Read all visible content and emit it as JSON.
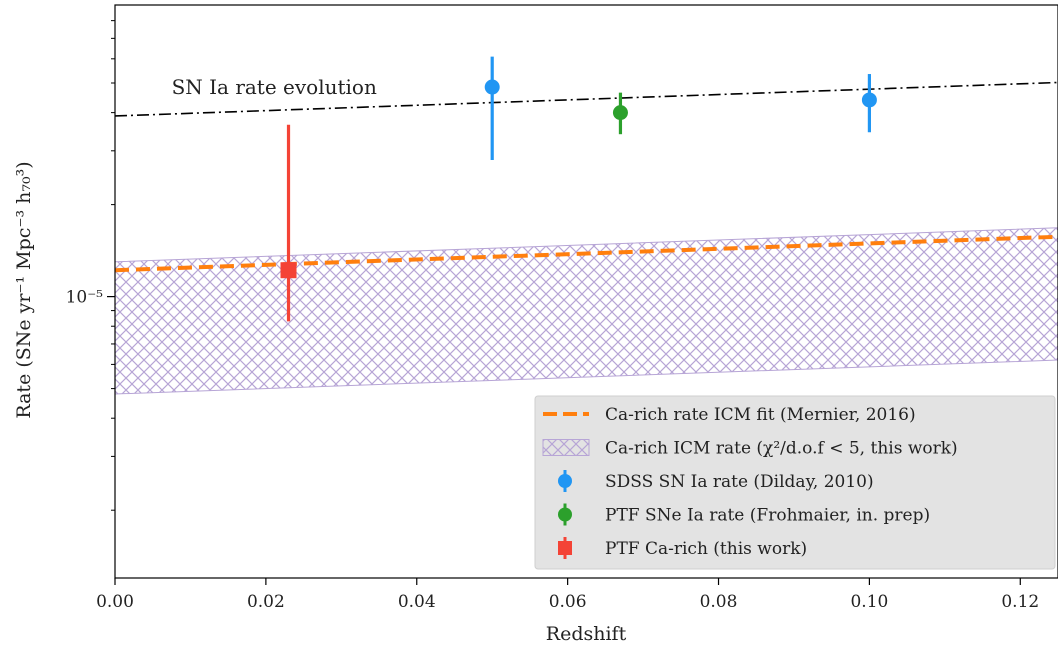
{
  "chart_data": {
    "type": "scatter",
    "xlabel": "Redshift",
    "ylabel": "Rate (SNe yr⁻¹ Mpc⁻³ h₇₀³)",
    "xlim": [
      0.0,
      0.125
    ],
    "ylim": [
      1.2e-06,
      9e-05
    ],
    "yscale": "log",
    "x_ticks": [
      {
        "value": 0.0,
        "label": "0.00"
      },
      {
        "value": 0.02,
        "label": "0.02"
      },
      {
        "value": 0.04,
        "label": "0.04"
      },
      {
        "value": 0.06,
        "label": "0.06"
      },
      {
        "value": 0.08,
        "label": "0.08"
      },
      {
        "value": 0.1,
        "label": "0.10"
      },
      {
        "value": 0.12,
        "label": "0.12"
      }
    ],
    "y_major_ticks": [
      {
        "value": 1e-05,
        "label": "10⁻⁵"
      }
    ],
    "y_minor_ticks": [
      2e-06,
      3e-06,
      4e-06,
      5e-06,
      6e-06,
      7e-06,
      8e-06,
      9e-06,
      2e-05,
      3e-05,
      4e-05,
      5e-05,
      6e-05,
      7e-05,
      8e-05
    ],
    "grid": false,
    "legend_position": "lower-right",
    "annotation": {
      "text": "SN Ia rate evolution",
      "x": 0.0075,
      "y": 4.6e-05
    },
    "series": [
      {
        "name": "SN Ia rate evolution",
        "kind": "line",
        "style": "dashdot",
        "color": "#000000",
        "x": [
          0.0,
          0.125
        ],
        "y": [
          3.9e-05,
          5.02e-05
        ]
      },
      {
        "name": "Ca-rich rate ICM fit (Mernier, 2016)",
        "kind": "line",
        "style": "dashed",
        "color": "#ff7f0e",
        "x": [
          0.0,
          0.125
        ],
        "y": [
          1.22e-05,
          1.57e-05
        ]
      },
      {
        "name": "Ca-rich ICM rate (χ²/d.o.f < 5, this work)",
        "kind": "band",
        "color": "#9467bd",
        "x": [
          0.0,
          0.125
        ],
        "y_low": [
          4.8e-06,
          6.2e-06
        ],
        "y_high": [
          1.3e-05,
          1.68e-05
        ]
      },
      {
        "name": "SDSS SN Ia rate (Dilday, 2010)",
        "kind": "errorbar",
        "marker": "circle",
        "color": "#2196f3",
        "points": [
          {
            "x": 0.05,
            "y": 4.85e-05,
            "y_low": 2.8e-05,
            "y_high": 6.1e-05
          },
          {
            "x": 0.1,
            "y": 4.4e-05,
            "y_low": 3.45e-05,
            "y_high": 5.35e-05
          }
        ]
      },
      {
        "name": "PTF SNe Ia rate (Frohmaier, in. prep)",
        "kind": "errorbar",
        "marker": "circle",
        "color": "#2ca02c",
        "points": [
          {
            "x": 0.067,
            "y": 4e-05,
            "y_low": 3.4e-05,
            "y_high": 4.65e-05
          }
        ]
      },
      {
        "name": "PTF Ca-rich (this work)",
        "kind": "errorbar",
        "marker": "square",
        "color": "#f44336",
        "points": [
          {
            "x": 0.023,
            "y": 1.22e-05,
            "y_low": 8.3e-06,
            "y_high": 3.65e-05
          }
        ]
      }
    ],
    "legend": [
      {
        "label": "Ca-rich rate ICM fit (Mernier, 2016)",
        "symbol": "dashed-line",
        "color": "#ff7f0e"
      },
      {
        "label": "Ca-rich ICM rate (χ²/d.o.f  < 5, this work)",
        "symbol": "hatch-patch",
        "color": "#9467bd"
      },
      {
        "label": "SDSS SN Ia rate (Dilday, 2010)",
        "symbol": "errorbar-circle",
        "color": "#2196f3"
      },
      {
        "label": "PTF SNe Ia rate (Frohmaier, in. prep)",
        "symbol": "errorbar-circle",
        "color": "#2ca02c"
      },
      {
        "label": "PTF Ca-rich (this work)",
        "symbol": "errorbar-square",
        "color": "#f44336"
      }
    ]
  }
}
